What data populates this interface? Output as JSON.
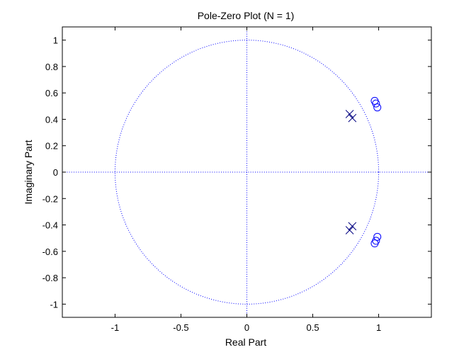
{
  "chart_data": {
    "type": "scatter",
    "title": "Pole-Zero Plot (N = 1)",
    "xlabel": "Real Part",
    "ylabel": "Imaginary Part",
    "xlim": [
      -1.4,
      1.4
    ],
    "ylim": [
      -1.1,
      1.1
    ],
    "xticks": [
      -1,
      -0.5,
      0,
      0.5,
      1
    ],
    "xtick_labels": [
      "-1",
      "-0.5",
      "0",
      "0.5",
      "1"
    ],
    "yticks": [
      -1,
      -0.8,
      -0.6,
      -0.4,
      -0.2,
      0,
      0.2,
      0.4,
      0.6,
      0.8,
      1
    ],
    "ytick_labels": [
      "-1",
      "-0.8",
      "-0.6",
      "-0.4",
      "-0.2",
      "0",
      "0.2",
      "0.4",
      "0.6",
      "0.8",
      "1"
    ],
    "grid": false,
    "unit_circle": true,
    "series": [
      {
        "marker": "x",
        "color": "#000080",
        "points": [
          {
            "x": 0.78,
            "y": 0.44
          },
          {
            "x": 0.8,
            "y": 0.41
          },
          {
            "x": 0.8,
            "y": -0.41
          },
          {
            "x": 0.78,
            "y": -0.44
          }
        ]
      },
      {
        "marker": "o",
        "color": "#0000ff",
        "points": [
          {
            "x": 0.97,
            "y": 0.54
          },
          {
            "x": 0.98,
            "y": 0.52
          },
          {
            "x": 0.99,
            "y": 0.49
          },
          {
            "x": 0.99,
            "y": -0.49
          },
          {
            "x": 0.98,
            "y": -0.52
          },
          {
            "x": 0.97,
            "y": -0.54
          }
        ]
      }
    ],
    "colors": {
      "axes": "#000000",
      "unit_circle": "#0000ff",
      "zero_lines": "#0000ff"
    }
  }
}
